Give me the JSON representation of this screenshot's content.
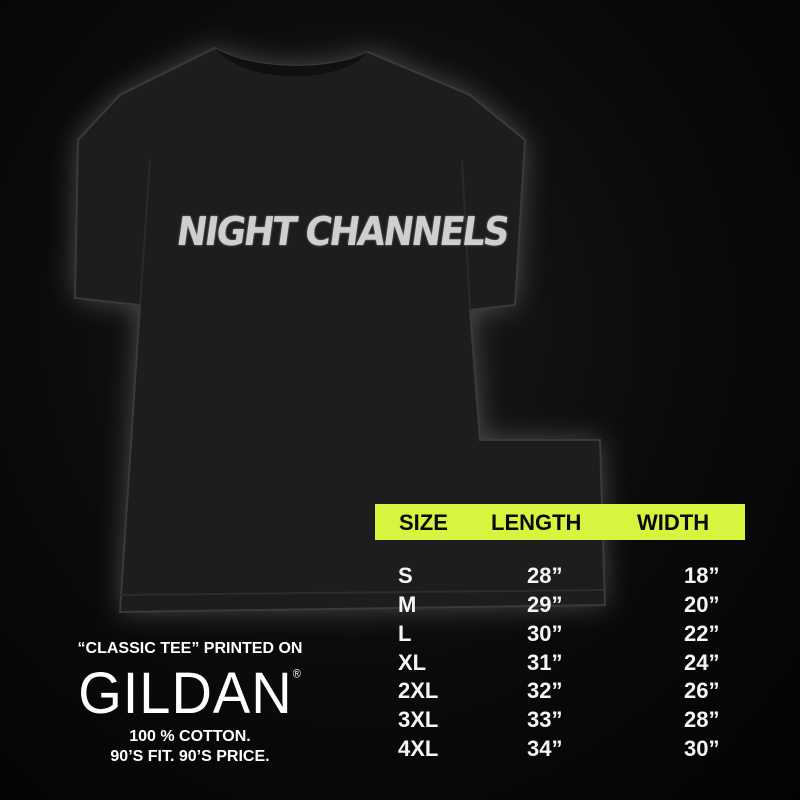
{
  "product": {
    "print_text": "NIGHT CHANNELS",
    "shirt_color": "#1d1d1d"
  },
  "size_chart": {
    "header_color": "#d6f53f",
    "headers": [
      "SIZE",
      "LENGTH",
      "WIDTH"
    ],
    "rows": [
      {
        "size": "S",
        "length": "28”",
        "width": "18”"
      },
      {
        "size": "M",
        "length": "29”",
        "width": "20”"
      },
      {
        "size": "L",
        "length": "30”",
        "width": "22”"
      },
      {
        "size": "XL",
        "length": "31”",
        "width": "24”"
      },
      {
        "size": "2XL",
        "length": "32”",
        "width": "26”"
      },
      {
        "size": "3XL",
        "length": "33”",
        "width": "28”"
      },
      {
        "size": "4XL",
        "length": "34”",
        "width": "30”"
      }
    ]
  },
  "promo": {
    "line1": "“CLASSIC TEE” PRINTED ON",
    "brand": "GILDAN",
    "registered": "®",
    "line2": "100 % COTTON.",
    "line3": "90’S FIT. 90’S PRICE."
  }
}
